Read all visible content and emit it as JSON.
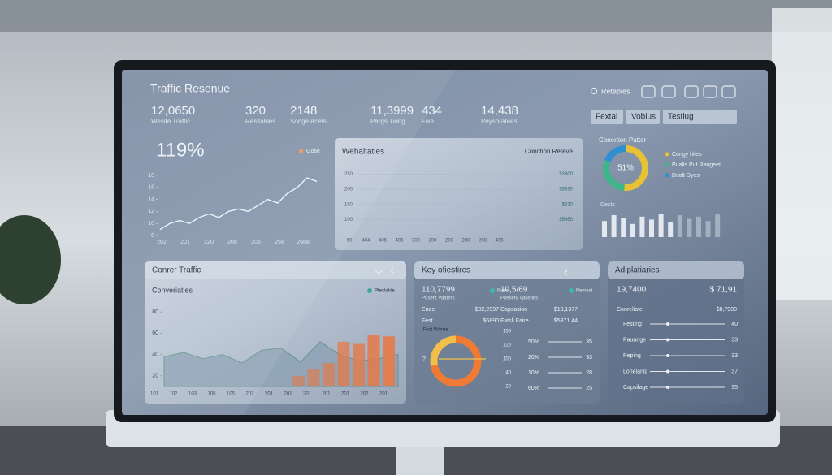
{
  "header": {
    "title": "Traffic Resenue",
    "search": "Retables"
  },
  "kpis": [
    {
      "value": "12,0650",
      "label": "Wesite Traffic"
    },
    {
      "value": "320",
      "label": "Resitables"
    },
    {
      "value": "2148",
      "label": "Songe Acets"
    },
    {
      "value": "11,3999",
      "label": "Pargs Tiring"
    },
    {
      "value": "434",
      "label": "Fixe"
    },
    {
      "value": "14,438",
      "label": "Peysoratees"
    }
  ],
  "tabs": [
    "Fextal",
    "Voblus",
    "Testlug"
  ],
  "growth": {
    "value": "119%",
    "legend": "Gose",
    "chart": {
      "type": "line",
      "color": "#f4f7fb",
      "xlabels": [
        "202",
        "201",
        "220",
        "208",
        "205",
        "258",
        "2688"
      ],
      "values": [
        9,
        10,
        10.5,
        10,
        11,
        11.6,
        11,
        12,
        12.4,
        12,
        13,
        14,
        13.4,
        15,
        16,
        17.6,
        17
      ],
      "ylim": [
        8,
        18
      ],
      "yticks": [
        18,
        16,
        14,
        12,
        10,
        8
      ]
    }
  },
  "website": {
    "title": "Wehaltaties",
    "subtitle": "Conction Reteve",
    "chart": {
      "type": "line",
      "ylim": [
        75,
        275
      ],
      "yticks": [
        250,
        200,
        150,
        100
      ],
      "right_labels": [
        "$3300",
        "$3330",
        "$330",
        "$5450"
      ],
      "xlabels": [
        "60",
        "404",
        "406",
        "406",
        "300",
        "200",
        "200",
        "200",
        "200",
        "405"
      ]
    }
  },
  "conversion": {
    "title": "Conertion Patter",
    "center": "51%",
    "donut": {
      "type": "pie",
      "values": [
        51,
        30,
        19
      ],
      "colors": [
        "#e7c235",
        "#3fb58a",
        "#2f8fd0"
      ],
      "labels": [
        "Congy hlies",
        "Pualls Put Rangeet",
        "Dsolt Dyes"
      ]
    },
    "bars": {
      "type": "bar",
      "label": "Dests",
      "color": "#eef2f8",
      "values": [
        22,
        30,
        26,
        18,
        28,
        24,
        32,
        20,
        30,
        25,
        28,
        22,
        31
      ],
      "ylim": [
        0,
        40
      ]
    }
  },
  "traffic": {
    "title": "Conrer Traffic",
    "subtitle": "Converiaties",
    "legend": "Pfestakie",
    "chart": {
      "ylim": [
        10,
        90
      ],
      "yticks": [
        80,
        60,
        40,
        20
      ],
      "xlabels": [
        "101",
        "102",
        "103",
        "105",
        "105",
        "201",
        "201",
        "201",
        "201",
        "201",
        "201",
        "202",
        "201"
      ],
      "area": {
        "values": [
          38,
          42,
          36,
          40,
          32,
          44,
          46,
          33,
          52,
          40,
          34,
          36,
          40
        ],
        "color": "#8aa0b5"
      },
      "bars": {
        "values": [
          20,
          26,
          32,
          52,
          50,
          58,
          57
        ],
        "color": "#e57a48"
      }
    }
  },
  "key": {
    "title": "Key ofiestires",
    "stats": [
      {
        "value": "110,7799",
        "label": "Pusent Vaaters",
        "tag": "Fueet"
      },
      {
        "value": "10,5/69",
        "label": "Pkesery Vasedes",
        "tag": "Pemest"
      }
    ],
    "rows": [
      [
        "Ende",
        "$32,2997"
      ],
      [
        "Capsasion",
        "$13,1377"
      ],
      [
        "Fest",
        "$6890"
      ],
      [
        "Fatsli Faire",
        "$5871.44"
      ]
    ],
    "donut": {
      "type": "pie",
      "label": "Fuct Worne",
      "values": [
        72,
        28
      ],
      "colors": [
        "#ee7a34",
        "#f2c04a"
      ]
    },
    "mark": "?",
    "scale": [
      "150",
      "120",
      "100",
      "40",
      "20"
    ],
    "gauges": [
      [
        "50%",
        "35"
      ],
      [
        "20%",
        "33"
      ],
      [
        "10%",
        "28"
      ],
      [
        "60%",
        "25"
      ]
    ]
  },
  "apps": {
    "title": "Adiplatiaries",
    "value": "19,7400",
    "amount": "$ 71,91",
    "label": "Conreliate",
    "label_value": "$8,7900",
    "sliders": [
      [
        "Festing",
        "40"
      ],
      [
        "Pauange",
        "33"
      ],
      [
        "Peping",
        "33"
      ],
      [
        "Lonelang",
        "37"
      ],
      [
        "Capsilage",
        "35"
      ]
    ]
  }
}
